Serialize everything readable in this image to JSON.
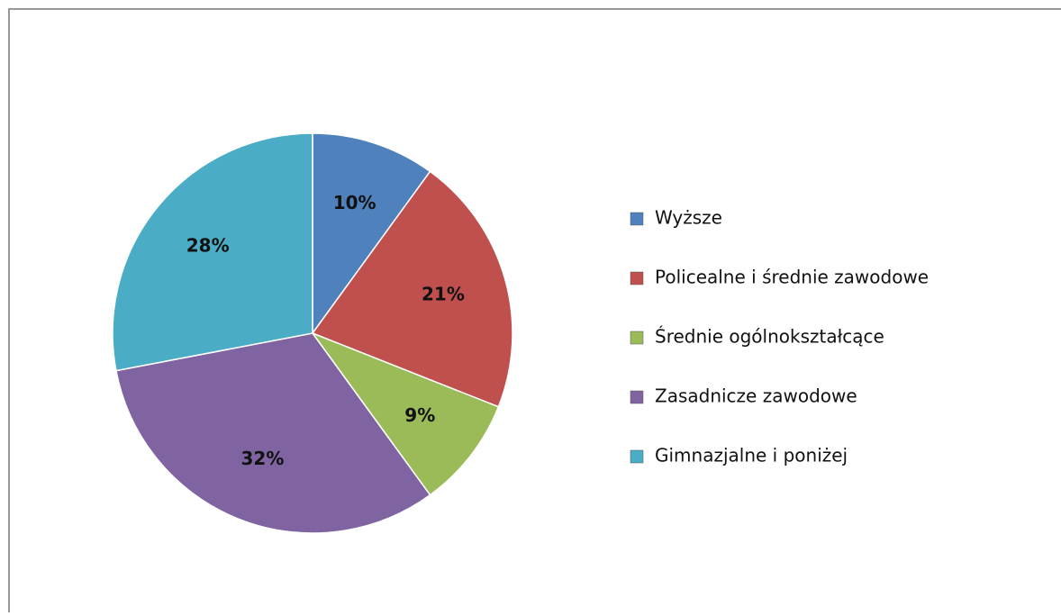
{
  "chart_data": {
    "type": "pie",
    "categories": [
      "Wyższe",
      "Policealne i średnie zawodowe",
      "Średnie ogólnokształcące",
      "Zasadnicze zawodowe",
      "Gimnazjalne i poniżej"
    ],
    "values": [
      10,
      21,
      9,
      32,
      28
    ],
    "value_labels": [
      "10%",
      "21%",
      "9%",
      "32%",
      "28%"
    ],
    "colors": [
      "#4f81bd",
      "#c0504d",
      "#9bbb59",
      "#8064a2",
      "#4bacc6"
    ],
    "legend": "right"
  }
}
